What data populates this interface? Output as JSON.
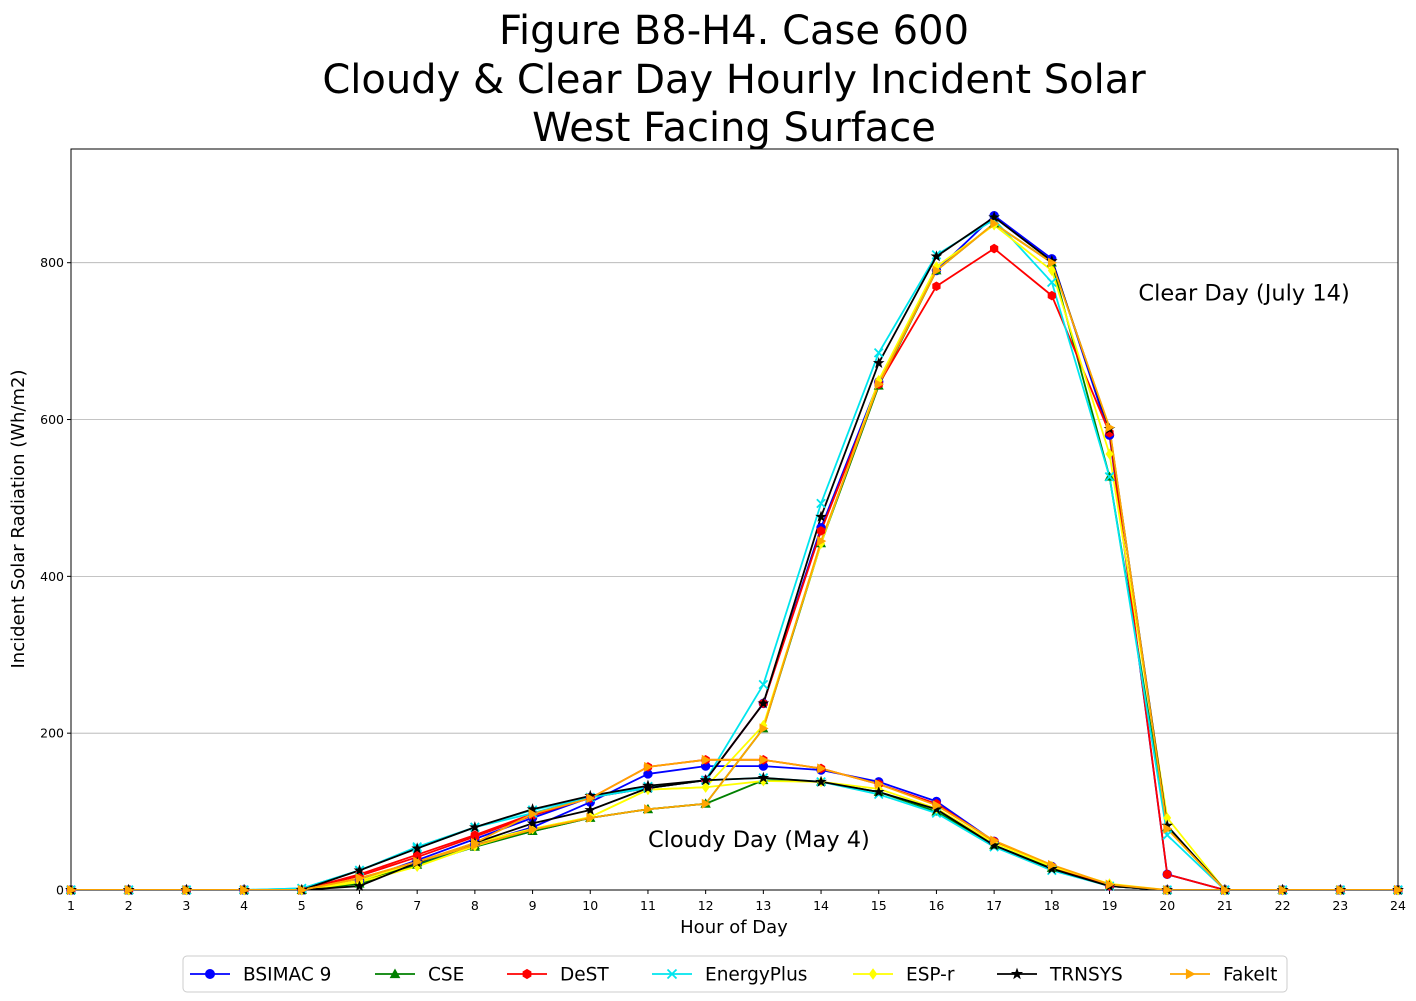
{
  "chart_data": {
    "type": "line",
    "title_lines": [
      "Figure B8-H4. Case 600",
      "Cloudy & Clear Day Hourly Incident Solar",
      "West Facing Surface"
    ],
    "xlabel": "Hour of Day",
    "ylabel": "Incident Solar Radiation (Wh/m2)",
    "xlim": [
      1,
      24
    ],
    "ylim": [
      0,
      945
    ],
    "x_ticks": [
      1,
      2,
      3,
      4,
      5,
      6,
      7,
      8,
      9,
      10,
      11,
      12,
      13,
      14,
      15,
      16,
      17,
      18,
      19,
      20,
      21,
      22,
      23,
      24
    ],
    "y_ticks": [
      0,
      200,
      400,
      600,
      800
    ],
    "grid": "horizontal",
    "legend_position": "bottom-center",
    "x": [
      1,
      2,
      3,
      4,
      5,
      6,
      7,
      8,
      9,
      10,
      11,
      12,
      13,
      14,
      15,
      16,
      17,
      18,
      19,
      20,
      21,
      22,
      23,
      24
    ],
    "annotations": [
      {
        "text": "Clear Day (July 14)",
        "x": 19.5,
        "y": 752
      },
      {
        "text": "Cloudy Day (May 4)",
        "x": 11.0,
        "y": 55
      }
    ],
    "series": [
      {
        "name": "BSIMAC 9",
        "color": "#0000ff",
        "marker": "circle",
        "cloudy": [
          0,
          0,
          0,
          0,
          0,
          12,
          33,
          58,
          80,
          112,
          148,
          158,
          158,
          153,
          138,
          113,
          62,
          30,
          5,
          0,
          0,
          0,
          0,
          0
        ],
        "clear": [
          0,
          0,
          0,
          0,
          0,
          12,
          38,
          65,
          92,
          118,
          130,
          140,
          238,
          462,
          648,
          790,
          860,
          805,
          580,
          20,
          0,
          0,
          0,
          0
        ]
      },
      {
        "name": "CSE",
        "color": "#008000",
        "marker": "triangle",
        "cloudy": [
          0,
          0,
          0,
          0,
          0,
          8,
          32,
          55,
          75,
          92,
          103,
          110,
          140,
          138,
          125,
          100,
          57,
          28,
          5,
          0,
          0,
          0,
          0,
          0
        ],
        "clear": [
          0,
          0,
          0,
          0,
          0,
          10,
          35,
          57,
          75,
          92,
          103,
          110,
          206,
          442,
          643,
          790,
          850,
          800,
          527,
          80,
          0,
          0,
          0,
          0
        ]
      },
      {
        "name": "DeST",
        "color": "#ff0000",
        "marker": "hexagon",
        "cloudy": [
          0,
          0,
          0,
          0,
          0,
          20,
          45,
          70,
          97,
          117,
          157,
          166,
          166,
          155,
          135,
          110,
          62,
          30,
          5,
          0,
          0,
          0,
          0,
          0
        ],
        "clear": [
          0,
          0,
          0,
          0,
          0,
          18,
          42,
          68,
          95,
          118,
          130,
          140,
          238,
          458,
          645,
          770,
          818,
          758,
          583,
          20,
          0,
          0,
          0,
          0
        ]
      },
      {
        "name": "EnergyPlus",
        "color": "#00e5ee",
        "marker": "x",
        "cloudy": [
          0,
          0,
          0,
          0,
          2,
          25,
          53,
          80,
          102,
          118,
          132,
          140,
          143,
          138,
          122,
          98,
          55,
          25,
          5,
          0,
          0,
          0,
          0,
          0
        ],
        "clear": [
          0,
          0,
          0,
          0,
          2,
          25,
          55,
          80,
          98,
          118,
          130,
          140,
          262,
          493,
          685,
          810,
          855,
          775,
          527,
          70,
          0,
          0,
          0,
          0
        ]
      },
      {
        "name": "ESP-r",
        "color": "#ffff00",
        "marker": "diamond",
        "cloudy": [
          0,
          0,
          0,
          0,
          0,
          10,
          30,
          56,
          78,
          93,
          128,
          131,
          139,
          138,
          129,
          104,
          60,
          30,
          8,
          0,
          0,
          0,
          0,
          0
        ],
        "clear": [
          0,
          0,
          0,
          0,
          0,
          12,
          35,
          60,
          78,
          93,
          128,
          131,
          210,
          442,
          650,
          795,
          848,
          790,
          556,
          92,
          0,
          0,
          0,
          0
        ]
      },
      {
        "name": "TRNSYS",
        "color": "#000000",
        "marker": "star",
        "cloudy": [
          0,
          0,
          0,
          0,
          0,
          25,
          53,
          80,
          103,
          120,
          133,
          140,
          143,
          138,
          125,
          103,
          57,
          27,
          5,
          0,
          0,
          0,
          0,
          0
        ],
        "clear": [
          0,
          0,
          0,
          0,
          0,
          5,
          35,
          60,
          85,
          102,
          130,
          140,
          238,
          476,
          672,
          808,
          858,
          802,
          588,
          82,
          0,
          0,
          0,
          0
        ]
      },
      {
        "name": "FakeIt",
        "color": "#ffa500",
        "marker": "triangle-right",
        "cloudy": [
          0,
          0,
          0,
          0,
          0,
          15,
          36,
          60,
          97,
          117,
          157,
          166,
          166,
          155,
          135,
          108,
          63,
          32,
          7,
          0,
          0,
          0,
          0,
          0
        ],
        "clear": [
          0,
          0,
          0,
          0,
          0,
          15,
          36,
          57,
          77,
          92,
          103,
          110,
          206,
          445,
          645,
          790,
          850,
          800,
          590,
          78,
          0,
          0,
          0,
          0
        ]
      }
    ]
  }
}
